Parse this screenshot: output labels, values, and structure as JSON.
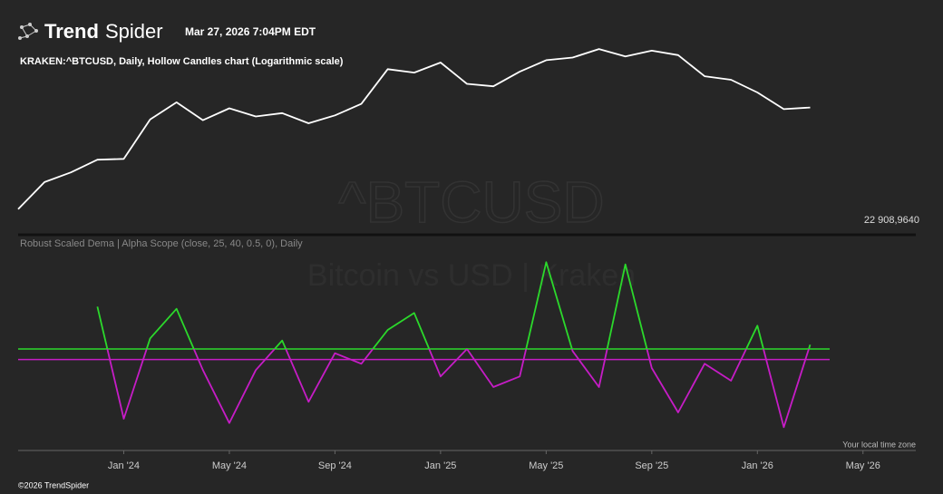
{
  "header": {
    "logo_bold": "Trend",
    "logo_light": "Spider",
    "timestamp": "Mar 27, 2026 7:04PM EDT",
    "symbol_line": "KRAKEN:^BTCUSD, Daily, Hollow Candles chart (Logarithmic scale)"
  },
  "chart_data": [
    {
      "type": "line",
      "watermark": "^BTCUSD",
      "log_scale": true,
      "price_label": "22 908,9640",
      "x": [
        "2023-09",
        "2023-10",
        "2023-11",
        "2023-12",
        "2024-01",
        "2024-02",
        "2024-03",
        "2024-04",
        "2024-05",
        "2024-06",
        "2024-07",
        "2024-08",
        "2024-09",
        "2024-10",
        "2024-11",
        "2024-12",
        "2025-01",
        "2025-02",
        "2025-03",
        "2025-04",
        "2025-05",
        "2025-06",
        "2025-07",
        "2025-08",
        "2025-09",
        "2025-10",
        "2025-11",
        "2025-12",
        "2026-01",
        "2026-02",
        "2026-03"
      ],
      "series": [
        {
          "name": "KRAKEN:^BTCUSD",
          "color": "#ffffff",
          "values": [
            27000,
            34500,
            37700,
            42300,
            42600,
            61000,
            71300,
            60600,
            67500,
            62700,
            64600,
            58900,
            63300,
            70300,
            96400,
            93400,
            102400,
            84300,
            82500,
            94200,
            104600,
            107100,
            115700,
            108200,
            114000,
            109500,
            90400,
            87500,
            78000,
            67000,
            68000
          ]
        }
      ],
      "xlim": [
        "2023-09",
        "2026-07"
      ],
      "ylim": [
        25000,
        130000
      ]
    },
    {
      "type": "line",
      "title": "Robust Scaled Dema | Alpha Scope (close, 25, 40, 0.5, 0), Daily",
      "watermark": "Bitcoin vs USD | Kraken",
      "x": [
        "2023-12",
        "2024-01",
        "2024-02",
        "2024-03",
        "2024-04",
        "2024-05",
        "2024-06",
        "2024-07",
        "2024-08",
        "2024-09",
        "2024-10",
        "2024-11",
        "2024-12",
        "2025-01",
        "2025-02",
        "2025-03",
        "2025-04",
        "2025-05",
        "2025-06",
        "2025-07",
        "2025-08",
        "2025-09",
        "2025-10",
        "2025-11",
        "2025-12",
        "2026-01",
        "2026-02",
        "2026-03"
      ],
      "series": [
        {
          "name": "Alpha Scope",
          "color": "#2bd92b",
          "lower_color": "#c61cc6",
          "values": [
            2.5,
            -2.8,
            1.0,
            2.4,
            -0.5,
            -3.0,
            -0.5,
            0.9,
            -2.0,
            0.3,
            -0.2,
            1.4,
            2.2,
            -0.8,
            0.5,
            -1.3,
            -0.8,
            4.6,
            0.4,
            -1.3,
            4.5,
            -0.4,
            -2.5,
            -0.2,
            -1.0,
            1.6,
            -3.2,
            0.7
          ]
        }
      ],
      "levels": [
        {
          "value": 0.5,
          "color": "#2bd92b"
        },
        {
          "value": 0,
          "color": "#c61cc6"
        }
      ],
      "xlim": [
        "2023-09",
        "2026-07"
      ],
      "ylim": [
        -4,
        5
      ],
      "xticks": [
        {
          "value": "2024-01",
          "label": "Jan '24"
        },
        {
          "value": "2024-05",
          "label": "May '24"
        },
        {
          "value": "2024-09",
          "label": "Sep '24"
        },
        {
          "value": "2025-01",
          "label": "Jan '25"
        },
        {
          "value": "2025-05",
          "label": "May '25"
        },
        {
          "value": "2025-09",
          "label": "Sep '25"
        },
        {
          "value": "2026-01",
          "label": "Jan '26"
        },
        {
          "value": "2026-05",
          "label": "May '26"
        }
      ]
    }
  ],
  "footer": {
    "timezone": "Your local time zone",
    "copyright": "©2026 TrendSpider"
  }
}
